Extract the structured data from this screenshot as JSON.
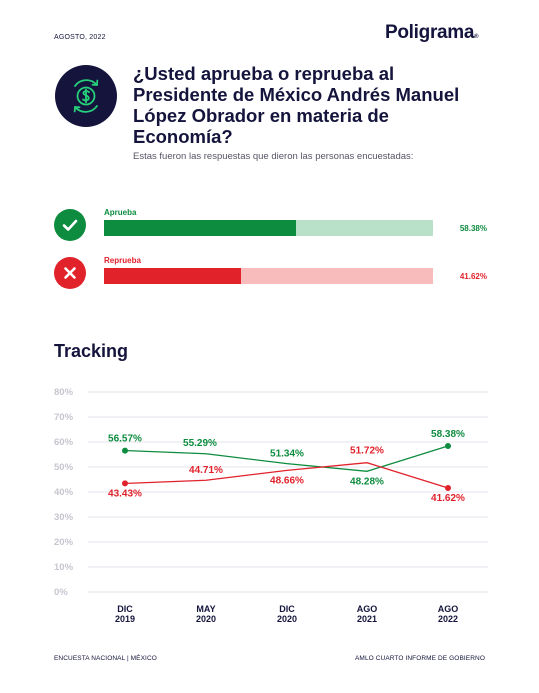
{
  "header": {
    "date": "AGOSTO, 2022",
    "brand": "Poligrama",
    "brand_suffix": "®"
  },
  "topic_icon": "dollar-cycle-icon",
  "question": "¿Usted aprueba o reprueba al Presidente de México Andrés Manuel López Obrador en materia de Economía?",
  "subtitle": "Estas fueron las respuestas que dieron las personas encuestadas:",
  "answers": [
    {
      "label": "Aprueba",
      "value": 58.38,
      "value_label": "58.38%",
      "icon": "check-icon",
      "color": "#0d8c3f",
      "light": "#b9e0c8"
    },
    {
      "label": "Reprueba",
      "value": 41.62,
      "value_label": "41.62%",
      "icon": "x-icon",
      "color": "#e1222b",
      "light": "#f8bcbc"
    }
  ],
  "colors": {
    "navy": "#14143c",
    "green": "#0d8c3f",
    "red": "#e1222b",
    "grid": "#e6e6ee",
    "tick": "#c6c6d0"
  },
  "chart_data": {
    "type": "line",
    "title": "Tracking",
    "categories": [
      [
        "DIC",
        "2019"
      ],
      [
        "MAY",
        "2020"
      ],
      [
        "DIC",
        "2020"
      ],
      [
        "AGO",
        "2021"
      ],
      [
        "AGO",
        "2022"
      ]
    ],
    "series": [
      {
        "name": "Aprueba",
        "color": "#0d8c3f",
        "values": [
          56.57,
          55.29,
          51.34,
          48.28,
          58.38
        ],
        "labels": [
          "56.57%",
          "55.29%",
          "51.34%",
          "48.28%",
          "58.38%"
        ],
        "markers": [
          true,
          false,
          false,
          false,
          true
        ]
      },
      {
        "name": "Reprueba",
        "color": "#e1222b",
        "values": [
          43.43,
          44.71,
          48.66,
          51.72,
          41.62
        ],
        "labels": [
          "43.43%",
          "44.71%",
          "48.66%",
          "51.72%",
          "41.62%"
        ],
        "markers": [
          true,
          false,
          false,
          false,
          true
        ]
      }
    ],
    "ylim": [
      0,
      80
    ],
    "yticks": [
      0,
      10,
      20,
      30,
      40,
      50,
      60,
      70,
      80
    ],
    "ytick_labels": [
      "0%",
      "10%",
      "20%",
      "30%",
      "40%",
      "50%",
      "60%",
      "70%",
      "80%"
    ],
    "grid": true
  },
  "footer": {
    "left": "ENCUESTA NACIONAL | MÉXICO",
    "right": "AMLO CUARTO INFORME DE GOBIERNO"
  }
}
